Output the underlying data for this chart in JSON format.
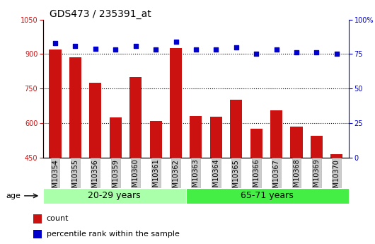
{
  "title": "GDS473 / 235391_at",
  "samples": [
    "GSM10354",
    "GSM10355",
    "GSM10356",
    "GSM10359",
    "GSM10360",
    "GSM10361",
    "GSM10362",
    "GSM10363",
    "GSM10364",
    "GSM10365",
    "GSM10366",
    "GSM10367",
    "GSM10368",
    "GSM10369",
    "GSM10370"
  ],
  "counts": [
    920,
    885,
    775,
    625,
    800,
    610,
    925,
    630,
    628,
    700,
    575,
    655,
    583,
    545,
    465
  ],
  "percentile_ranks": [
    83,
    81,
    79,
    78,
    81,
    78,
    84,
    78,
    78,
    80,
    75,
    78,
    76,
    76,
    75
  ],
  "group1_label": "20-29 years",
  "group1_count": 7,
  "group2_label": "65-71 years",
  "group2_count": 8,
  "age_label": "age",
  "ylim_left": [
    450,
    1050
  ],
  "ylim_right": [
    0,
    100
  ],
  "yticks_left": [
    450,
    600,
    750,
    900,
    1050
  ],
  "yticks_right": [
    0,
    25,
    50,
    75,
    100
  ],
  "bar_color": "#cc1111",
  "dot_color": "#0000cc",
  "group1_color": "#aaffaa",
  "group2_color": "#44ee44",
  "tick_fontsize": 7,
  "legend_fontsize": 8,
  "group_fontsize": 9
}
